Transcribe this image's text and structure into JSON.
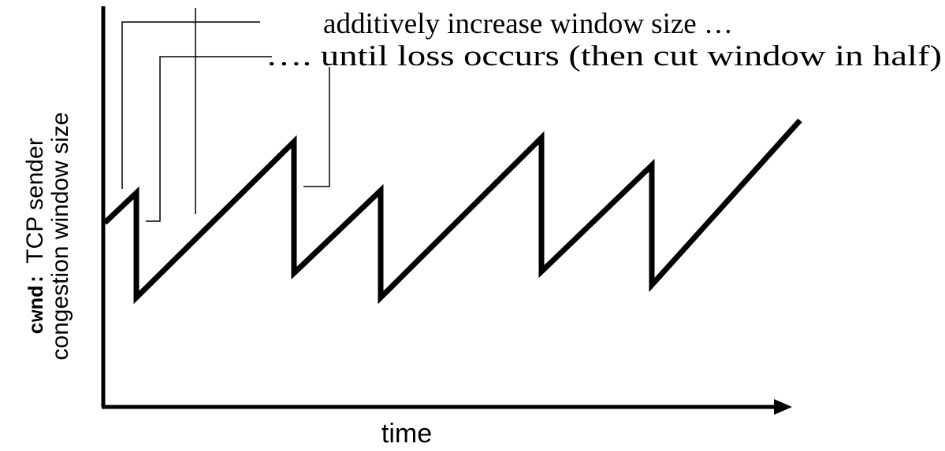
{
  "annotations": {
    "increase": "additively increase window size …",
    "loss": "…. until loss occurs (then cut window in half)"
  },
  "y_axis": {
    "variable": "cwnd:",
    "line1": "TCP sender",
    "line2": "congestion window size"
  },
  "x_axis": {
    "label": "time"
  }
}
